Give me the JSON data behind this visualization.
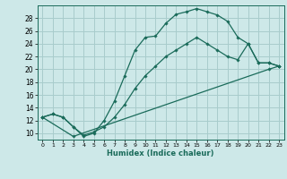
{
  "xlabel": "Humidex (Indice chaleur)",
  "background_color": "#cde8e8",
  "grid_color": "#a8cccc",
  "line_color": "#1a6b5a",
  "xlim": [
    -0.5,
    23.5
  ],
  "ylim": [
    9,
    30
  ],
  "xticks": [
    0,
    1,
    2,
    3,
    4,
    5,
    6,
    7,
    8,
    9,
    10,
    11,
    12,
    13,
    14,
    15,
    16,
    17,
    18,
    19,
    20,
    21,
    22,
    23
  ],
  "yticks": [
    10,
    12,
    14,
    16,
    18,
    20,
    22,
    24,
    26,
    28
  ],
  "curve1_x": [
    0,
    1,
    2,
    3,
    4,
    5,
    6,
    7,
    8,
    9,
    10,
    11,
    12,
    13,
    14,
    15,
    16,
    17,
    18,
    19,
    20,
    21,
    22,
    23
  ],
  "curve1_y": [
    12.5,
    13.0,
    12.5,
    11.0,
    9.5,
    10.0,
    12.0,
    15.0,
    19.0,
    23.0,
    25.0,
    25.2,
    27.2,
    28.6,
    29.0,
    29.5,
    29.0,
    28.5,
    27.5,
    25.0,
    24.0,
    21.0,
    21.0,
    20.5
  ],
  "curve2_x": [
    0,
    1,
    2,
    3,
    4,
    5,
    6,
    7,
    8,
    9,
    10,
    11,
    12,
    13,
    14,
    15,
    16,
    17,
    18,
    19,
    20,
    21,
    22,
    23
  ],
  "curve2_y": [
    12.5,
    13.0,
    12.5,
    11.0,
    9.7,
    10.2,
    11.0,
    12.5,
    14.5,
    17.0,
    19.0,
    20.5,
    22.0,
    23.0,
    24.0,
    25.0,
    24.0,
    23.0,
    22.0,
    21.5,
    24.0,
    21.0,
    21.0,
    20.5
  ],
  "curve3_x": [
    0,
    3,
    22,
    23
  ],
  "curve3_y": [
    12.5,
    9.5,
    20.0,
    20.5
  ]
}
